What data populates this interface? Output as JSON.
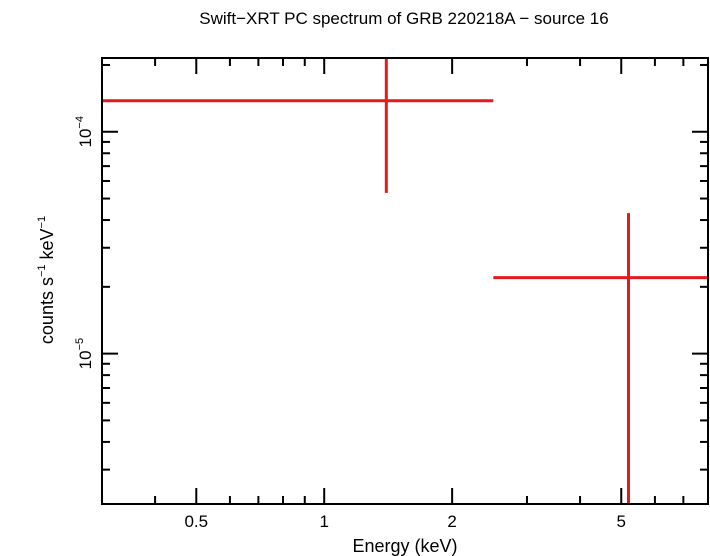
{
  "chart_data": {
    "type": "scatter",
    "title": "Swift−XRT PC spectrum of GRB 220218A − source 16",
    "xlabel": "Energy (keV)",
    "ylabel": {
      "prefix": "counts s",
      "exp1": "−1",
      "middle": " keV",
      "exp2": "−1"
    },
    "x_scale": "log",
    "y_scale": "log",
    "xlim": [
      0.3,
      8.0
    ],
    "ylim": [
      2.1e-06,
      0.000215
    ],
    "x_ticks": [
      {
        "value": 0.5,
        "label": "0.5"
      },
      {
        "value": 1,
        "label": "1"
      },
      {
        "value": 2,
        "label": "2"
      },
      {
        "value": 5,
        "label": "5"
      }
    ],
    "y_ticks": [
      {
        "value": 0.0001,
        "base": "10",
        "exp": "−4"
      },
      {
        "value": 1e-05,
        "base": "10",
        "exp": "−5"
      }
    ],
    "series": [
      {
        "name": "source 16",
        "color": "#e41a1c",
        "points": [
          {
            "x": 1.4,
            "xlo": 0.3,
            "xhi": 2.5,
            "y": 0.000138,
            "ylo": 5.3e-05,
            "yhi": 0.000215
          },
          {
            "x": 5.2,
            "xlo": 2.5,
            "xhi": 8.0,
            "y": 2.2e-05,
            "ylo": 2.1e-06,
            "yhi": 4.3e-05
          }
        ]
      }
    ]
  }
}
